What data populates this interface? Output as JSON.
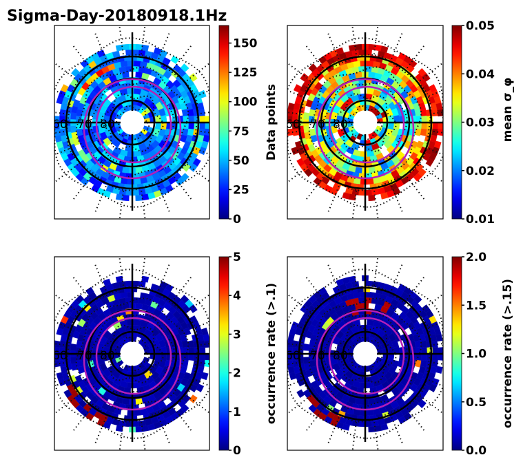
{
  "figure": {
    "title": "Sigma-Day-20180918.1Hz"
  },
  "chart_data": [
    {
      "type": "heatmap",
      "projection": "polar (magnetic latitude / MLT dial)",
      "panel": "top-left",
      "title": "",
      "colormap": "jet",
      "colorbar": {
        "label": "Data points",
        "range": [
          0,
          165
        ],
        "ticks": [
          "0",
          "25",
          "50",
          "75",
          "100",
          "125",
          "150"
        ]
      },
      "radial_labels": [
        "60",
        "70",
        "80"
      ],
      "grid": "black latitude circles + MLT crosshair, dotted reference pattern",
      "overlay": "two magenta auroral oval contours",
      "dominant_values": "mostly 10-60, a few bins 100-160 in the pre-noon sector"
    },
    {
      "type": "heatmap",
      "projection": "polar (magnetic latitude / MLT dial)",
      "panel": "top-right",
      "colormap": "jet",
      "colorbar": {
        "label": "mean σ_φ",
        "range": [
          0.01,
          0.05
        ],
        "ticks": [
          "0.01",
          "0.02",
          "0.03",
          "0.04",
          "0.05"
        ]
      },
      "radial_labels": [
        "60",
        "70",
        "80"
      ],
      "overlay": "two magenta auroral oval contours",
      "dominant_values": "outer ring ~0.045-0.05, inner rings 0.02-0.035"
    },
    {
      "type": "heatmap",
      "projection": "polar (magnetic latitude / MLT dial)",
      "panel": "bottom-left",
      "colormap": "jet",
      "colorbar": {
        "label": "occurrence rate (>.1)",
        "range": [
          0,
          5
        ],
        "ticks": [
          "0",
          "1",
          "2",
          "3",
          "4",
          "5"
        ]
      },
      "radial_labels": [
        "60",
        "70",
        "80"
      ],
      "overlay": "two magenta auroral oval contours",
      "dominant_values": "mostly 0, scattered bins 2-5 near oval and at lower latitudes pre-midnight"
    },
    {
      "type": "heatmap",
      "projection": "polar (magnetic latitude / MLT dial)",
      "panel": "bottom-right",
      "colormap": "jet",
      "colorbar": {
        "label": "occurrence rate (>.15)",
        "range": [
          0,
          2.0
        ],
        "ticks": [
          "0.0",
          "0.5",
          "1.0",
          "1.5",
          "2.0"
        ]
      },
      "radial_labels": [
        "60",
        "70",
        "80"
      ],
      "overlay": "two magenta auroral oval contours",
      "dominant_values": "mostly 0, few bins ~2.0 near noon oval and lower-latitude pre-midnight"
    }
  ]
}
